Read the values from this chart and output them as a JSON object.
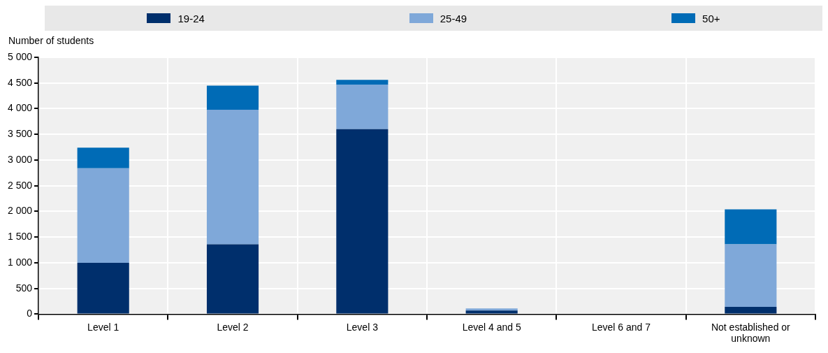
{
  "chart_data": {
    "type": "bar",
    "stacked": true,
    "ylabel": "Number of students",
    "categories": [
      "Level 1",
      "Level 2",
      "Level 3",
      "Level 4 and 5",
      "Level 6 and 7",
      "Not established or unknown"
    ],
    "series": [
      {
        "name": "19-24",
        "color": "#002f6c",
        "values": [
          1000,
          1360,
          3600,
          70,
          0,
          140
        ]
      },
      {
        "name": "25-49",
        "color": "#7fa8d9",
        "values": [
          1840,
          2620,
          870,
          40,
          0,
          1220
        ]
      },
      {
        "name": "50+",
        "color": "#006bb6",
        "values": [
          400,
          470,
          90,
          0,
          0,
          680
        ]
      }
    ],
    "ylim": [
      0,
      5000
    ],
    "yticks": [
      0,
      {
        "value": 500,
        "label": "500"
      },
      {
        "value": 1000,
        "label": "1 000"
      },
      {
        "value": 1500,
        "label": "1 500"
      },
      {
        "value": 2000,
        "label": "2 000"
      },
      {
        "value": 2500,
        "label": "2 500"
      },
      {
        "value": 3000,
        "label": "3 000"
      },
      {
        "value": 3500,
        "label": "3 500"
      },
      {
        "value": 4000,
        "label": "4 000"
      },
      {
        "value": 4500,
        "label": "4 500"
      },
      {
        "value": 5000,
        "label": "5 000"
      }
    ],
    "grid": true,
    "legend": "top"
  }
}
